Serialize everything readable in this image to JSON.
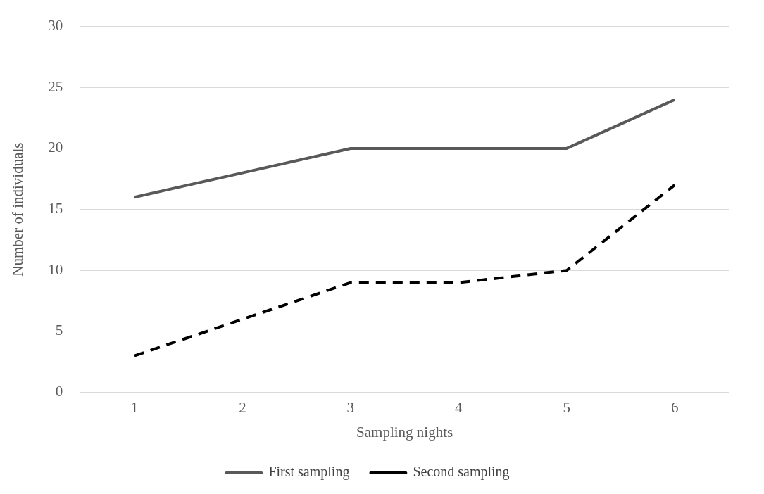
{
  "chart_data": {
    "type": "line",
    "xlabel": "Sampling nights",
    "ylabel": "Number of individuals",
    "categories": [
      "1",
      "2",
      "3",
      "4",
      "5",
      "6"
    ],
    "series": [
      {
        "name": "First sampling",
        "color": "#595959",
        "line_style": "solid",
        "values": [
          16,
          18,
          20,
          20,
          20,
          24
        ]
      },
      {
        "name": "Second sampling",
        "color": "#000000",
        "line_style": "dashed",
        "values": [
          3,
          6,
          9,
          9,
          10,
          17
        ]
      }
    ],
    "ylim": [
      0,
      30
    ],
    "yticks": [
      0,
      5,
      10,
      15,
      20,
      25,
      30
    ],
    "grid": "y",
    "legend": "bottom",
    "marker": "none"
  }
}
